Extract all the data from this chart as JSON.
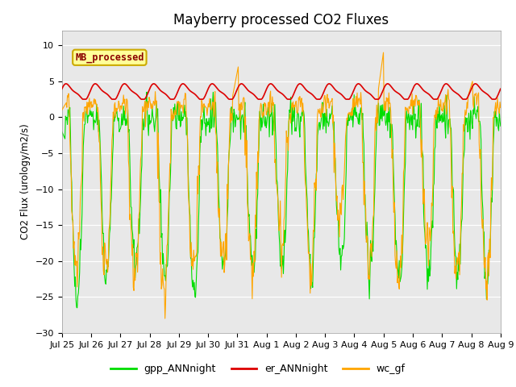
{
  "title": "Mayberry processed CO2 Fluxes",
  "ylabel": "CO2 Flux (urology/m2/s)",
  "ylim": [
    -30,
    12
  ],
  "yticks": [
    -30,
    -25,
    -20,
    -15,
    -10,
    -5,
    0,
    5,
    10
  ],
  "background_color": "#e8e8e8",
  "fig_background": "#ffffff",
  "legend_label": "MB_processed",
  "legend_label_color": "#8b0000",
  "legend_box_facecolor": "#ffff99",
  "legend_box_edgecolor": "#ccaa00",
  "series": {
    "gpp_ANNnight": {
      "color": "#00dd00",
      "linewidth": 0.8
    },
    "er_ANNnight": {
      "color": "#dd0000",
      "linewidth": 1.2
    },
    "wc_gf": {
      "color": "#ffa500",
      "linewidth": 0.8
    }
  },
  "num_days": 15,
  "points_per_day": 48,
  "x_tick_labels": [
    "Jul 25",
    "Jul 26",
    "Jul 27",
    "Jul 28",
    "Jul 29",
    "Jul 30",
    "Jul 31",
    "Aug 1",
    "Aug 2",
    "Aug 3",
    "Aug 4",
    "Aug 5",
    "Aug 6",
    "Aug 7",
    "Aug 8",
    "Aug 9"
  ]
}
